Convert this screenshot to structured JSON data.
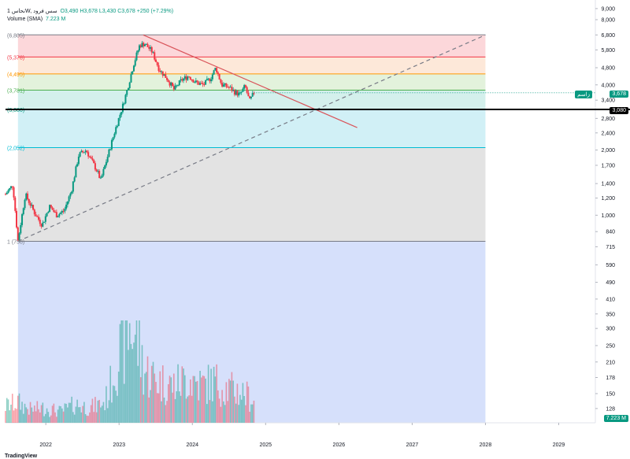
{
  "header": {
    "symbol": "1 نحاسW, سس فرود",
    "ohlc": "O3,490  H3,678  L3,430  C3,678  +250 (+7.29%)",
    "volume_label": "Volume (SMA)",
    "volume_value": "7.223 M"
  },
  "price_badge": {
    "name": "زاسم",
    "value": "3,678"
  },
  "line_badge": "3,080",
  "volume_badge": "7.223 M",
  "brand": "TradingView",
  "colors": {
    "up": "#089981",
    "down": "#f23645",
    "trend_down": "#d9545a",
    "trend_up": "#787b86",
    "horizontal": "#000000"
  },
  "chart_data": {
    "type": "candlestick",
    "scale": "log",
    "x_ticks": [
      "2022",
      "2023",
      "2024",
      "2025",
      "2026",
      "2027",
      "2028",
      "2029"
    ],
    "y_ticks": [
      9000,
      8000,
      6800,
      5800,
      4800,
      4000,
      3400,
      2800,
      2400,
      2000,
      1700,
      1400,
      1200,
      1000,
      840,
      715,
      590,
      490,
      410,
      350,
      300,
      250,
      210,
      178,
      150,
      128
    ],
    "y_tick_labels": [
      "9,000",
      "8,000",
      "6,800",
      "5,800",
      "4,800",
      "4,000",
      "3,400",
      "2,800",
      "2,400",
      "2,000",
      "1,700",
      "1,400",
      "1,200",
      "1,000",
      "840",
      "715",
      "590",
      "490",
      "410",
      "350",
      "300",
      "250",
      "210",
      "178",
      "150",
      "128"
    ],
    "ylim": [
      110,
      9300
    ],
    "xlim": [
      2021.45,
      2029.5
    ],
    "fib_levels": [
      {
        "label": "(6,805)",
        "value": 6805,
        "color": "#787b86",
        "fill": "#fcd7da"
      },
      {
        "label": "(5,378)",
        "value": 5378,
        "color": "#f23645",
        "fill": "#fde8d9"
      },
      {
        "label": "(4,495)",
        "value": 4495,
        "color": "#ff9800",
        "fill": "#e3f2dc"
      },
      {
        "label": "(3,781)",
        "value": 3781,
        "color": "#4caf50",
        "fill": "#d4f0ec"
      },
      {
        "label": "(3,080)",
        "value": 3080,
        "color": "#089981",
        "fill": "#d1f0f6"
      },
      {
        "label": "(2,052)",
        "value": 2052,
        "color": "#00bcd4",
        "fill": "#e3e3e3"
      },
      {
        "label": "1 (758)",
        "value": 758,
        "color": "#787b86",
        "fill": "#d6e0fb"
      }
    ],
    "fib_x_range": [
      2021.62,
      2028.0
    ],
    "horizontal_line": 3080,
    "trendlines": [
      {
        "from": [
          2023.33,
          6800
        ],
        "to": [
          2026.25,
          2540
        ],
        "color": "#d9545a",
        "style": "solid"
      },
      {
        "from": [
          2021.62,
          758
        ],
        "to": [
          2028.0,
          6800
        ],
        "color": "#787b86",
        "style": "dashed"
      }
    ],
    "anchors": [
      [
        2021.45,
        1250
      ],
      [
        2021.55,
        1380
      ],
      [
        2021.62,
        760
      ],
      [
        2021.72,
        1250
      ],
      [
        2021.85,
        1020
      ],
      [
        2021.95,
        900
      ],
      [
        2022.05,
        1100
      ],
      [
        2022.15,
        1000
      ],
      [
        2022.25,
        1050
      ],
      [
        2022.35,
        1300
      ],
      [
        2022.45,
        1900
      ],
      [
        2022.55,
        2000
      ],
      [
        2022.62,
        1800
      ],
      [
        2022.7,
        1600
      ],
      [
        2022.75,
        1450
      ],
      [
        2022.85,
        1900
      ],
      [
        2022.95,
        2500
      ],
      [
        2023.05,
        3200
      ],
      [
        2023.12,
        3900
      ],
      [
        2023.2,
        5000
      ],
      [
        2023.28,
        6100
      ],
      [
        2023.35,
        6200
      ],
      [
        2023.45,
        5700
      ],
      [
        2023.55,
        4700
      ],
      [
        2023.65,
        4300
      ],
      [
        2023.75,
        3800
      ],
      [
        2023.85,
        4200
      ],
      [
        2023.95,
        4400
      ],
      [
        2024.05,
        4100
      ],
      [
        2024.15,
        4000
      ],
      [
        2024.25,
        4300
      ],
      [
        2024.32,
        4800
      ],
      [
        2024.4,
        4000
      ],
      [
        2024.5,
        3900
      ],
      [
        2024.58,
        3700
      ],
      [
        2024.65,
        3600
      ],
      [
        2024.72,
        3950
      ],
      [
        2024.78,
        3350
      ],
      [
        2024.84,
        3678
      ]
    ],
    "volume_anchors": [
      [
        2021.45,
        0.45
      ],
      [
        2021.62,
        0.55
      ],
      [
        2021.8,
        0.35
      ],
      [
        2022.0,
        0.4
      ],
      [
        2022.2,
        0.3
      ],
      [
        2022.4,
        0.5
      ],
      [
        2022.6,
        0.4
      ],
      [
        2022.8,
        0.55
      ],
      [
        2022.95,
        1.6
      ],
      [
        2023.05,
        2.0
      ],
      [
        2023.15,
        2.6
      ],
      [
        2023.25,
        2.2
      ],
      [
        2023.35,
        1.4
      ],
      [
        2023.55,
        1.1
      ],
      [
        2023.75,
        1.0
      ],
      [
        2023.95,
        1.2
      ],
      [
        2024.15,
        1.0
      ],
      [
        2024.3,
        1.1
      ],
      [
        2024.5,
        0.9
      ],
      [
        2024.7,
        0.8
      ],
      [
        2024.84,
        0.6
      ]
    ]
  }
}
